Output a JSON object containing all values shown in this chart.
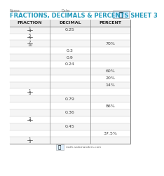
{
  "title": "FRACTIONS, DECIMALS & PERCENTS SHEET 3",
  "title_color": "#2299bb",
  "col_headers": [
    "FRACTION",
    "DECIMAL",
    "PERCENT"
  ],
  "fraction_texts": [
    "1/4",
    "5/5",
    "7/10",
    "",
    "",
    "",
    "",
    "",
    "",
    "1/8",
    "",
    "",
    "",
    "3/4",
    "",
    "",
    "1/3"
  ],
  "decimal_texts": [
    "0.25",
    "",
    "",
    "0.3",
    "0.9",
    "0.24",
    "",
    "",
    "",
    "",
    "0.79",
    "",
    "0.36",
    "",
    "0.45",
    "",
    ""
  ],
  "percent_texts": [
    "",
    "",
    "70%",
    "",
    "",
    "",
    "60%",
    "20%",
    "14%",
    "",
    "",
    "86%",
    "",
    "",
    "",
    "37.5%",
    ""
  ],
  "bg_color": "#ffffff",
  "header_bg": "#e0e0e0",
  "grid_color": "#bbbbbb",
  "text_color": "#222222",
  "cell_text_color": "#444444",
  "footer_text": "math-salamanders.com",
  "name_label": "Name:",
  "date_label": "Date:"
}
